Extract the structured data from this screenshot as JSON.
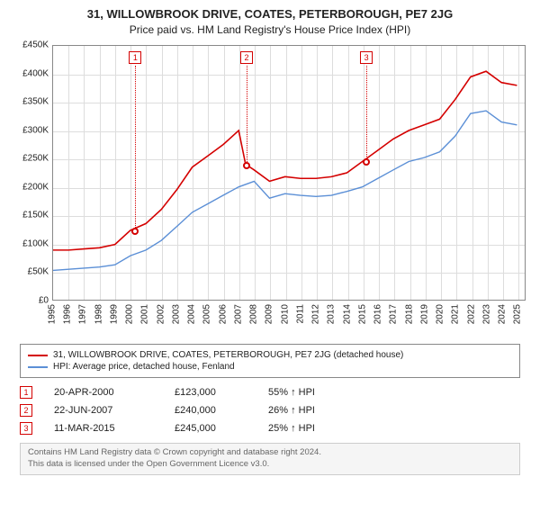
{
  "title": "31, WILLOWBROOK DRIVE, COATES, PETERBOROUGH, PE7 2JG",
  "subtitle": "Price paid vs. HM Land Registry's House Price Index (HPI)",
  "chart": {
    "type": "line",
    "background_color": "#ffffff",
    "grid_color": "#dddddd",
    "border_color": "#888888",
    "x": {
      "min": 1995,
      "max": 2025.5,
      "ticks": [
        1995,
        1996,
        1997,
        1998,
        1999,
        2000,
        2001,
        2002,
        2003,
        2004,
        2005,
        2006,
        2007,
        2008,
        2009,
        2010,
        2011,
        2012,
        2013,
        2014,
        2015,
        2016,
        2017,
        2018,
        2019,
        2020,
        2021,
        2022,
        2023,
        2024,
        2025
      ]
    },
    "y": {
      "min": 0,
      "max": 450000,
      "tick_step": 50000,
      "label_prefix": "£",
      "label_suffix": "K",
      "label_divisor": 1000
    },
    "series": [
      {
        "id": "property",
        "label": "31, WILLOWBROOK DRIVE, COATES, PETERBOROUGH, PE7 2JG (detached house)",
        "color": "#d40000",
        "line_width": 1.6,
        "points": [
          [
            1995,
            88000
          ],
          [
            1996,
            88000
          ],
          [
            1997,
            90000
          ],
          [
            1998,
            92000
          ],
          [
            1999,
            98000
          ],
          [
            2000,
            123000
          ],
          [
            2001,
            135000
          ],
          [
            2002,
            160000
          ],
          [
            2003,
            195000
          ],
          [
            2004,
            235000
          ],
          [
            2005,
            255000
          ],
          [
            2006,
            275000
          ],
          [
            2007,
            300000
          ],
          [
            2007.45,
            240000
          ],
          [
            2008,
            230000
          ],
          [
            2009,
            210000
          ],
          [
            2010,
            218000
          ],
          [
            2011,
            215000
          ],
          [
            2012,
            215000
          ],
          [
            2013,
            218000
          ],
          [
            2014,
            225000
          ],
          [
            2015,
            245000
          ],
          [
            2016,
            265000
          ],
          [
            2017,
            285000
          ],
          [
            2018,
            300000
          ],
          [
            2019,
            310000
          ],
          [
            2020,
            320000
          ],
          [
            2021,
            355000
          ],
          [
            2022,
            395000
          ],
          [
            2023,
            405000
          ],
          [
            2024,
            385000
          ],
          [
            2025,
            380000
          ]
        ]
      },
      {
        "id": "hpi",
        "label": "HPI: Average price, detached house, Fenland",
        "color": "#5b8fd6",
        "line_width": 1.4,
        "points": [
          [
            1995,
            52000
          ],
          [
            1996,
            54000
          ],
          [
            1997,
            56000
          ],
          [
            1998,
            58000
          ],
          [
            1999,
            62000
          ],
          [
            2000,
            78000
          ],
          [
            2001,
            88000
          ],
          [
            2002,
            105000
          ],
          [
            2003,
            130000
          ],
          [
            2004,
            155000
          ],
          [
            2005,
            170000
          ],
          [
            2006,
            185000
          ],
          [
            2007,
            200000
          ],
          [
            2008,
            210000
          ],
          [
            2009,
            180000
          ],
          [
            2010,
            188000
          ],
          [
            2011,
            185000
          ],
          [
            2012,
            183000
          ],
          [
            2013,
            185000
          ],
          [
            2014,
            192000
          ],
          [
            2015,
            200000
          ],
          [
            2016,
            215000
          ],
          [
            2017,
            230000
          ],
          [
            2018,
            245000
          ],
          [
            2019,
            252000
          ],
          [
            2020,
            262000
          ],
          [
            2021,
            290000
          ],
          [
            2022,
            330000
          ],
          [
            2023,
            335000
          ],
          [
            2024,
            315000
          ],
          [
            2025,
            310000
          ]
        ]
      }
    ],
    "sale_markers": [
      {
        "n": 1,
        "x": 2000.3,
        "y": 123000
      },
      {
        "n": 2,
        "x": 2007.47,
        "y": 240000
      },
      {
        "n": 3,
        "x": 2015.19,
        "y": 245000
      }
    ]
  },
  "legend": {
    "items": [
      {
        "color": "#d40000",
        "label_ref": "chart.series.0.label"
      },
      {
        "color": "#5b8fd6",
        "label_ref": "chart.series.1.label"
      }
    ]
  },
  "sales_table": {
    "rows": [
      {
        "n": 1,
        "date": "20-APR-2000",
        "price": "£123,000",
        "delta": "55% ↑ HPI"
      },
      {
        "n": 2,
        "date": "22-JUN-2007",
        "price": "£240,000",
        "delta": "26% ↑ HPI"
      },
      {
        "n": 3,
        "date": "11-MAR-2015",
        "price": "£245,000",
        "delta": "25% ↑ HPI"
      }
    ]
  },
  "footer": {
    "line1": "Contains HM Land Registry data © Crown copyright and database right 2024.",
    "line2": "This data is licensed under the Open Government Licence v3.0."
  }
}
